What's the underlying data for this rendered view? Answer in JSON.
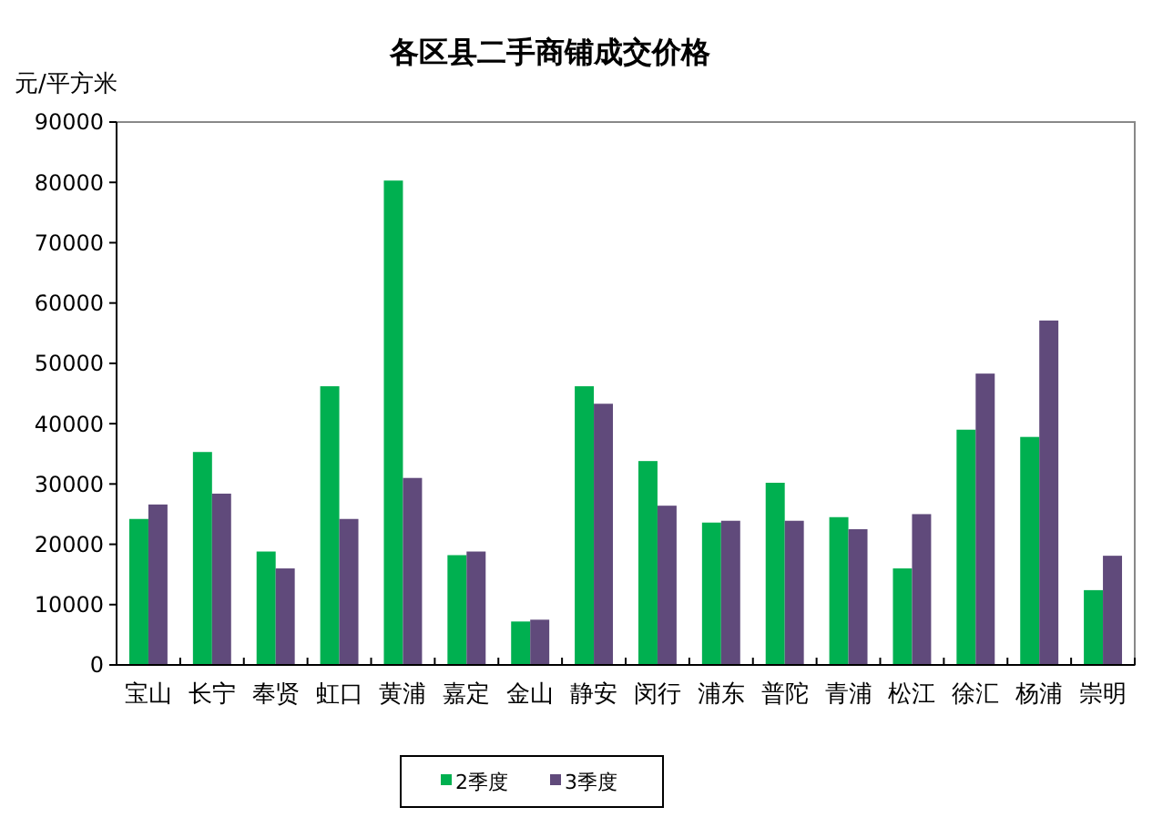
{
  "chart_data": {
    "type": "bar",
    "title": "各区县二手商铺成交价格",
    "ylabel": "元/平方米",
    "categories": [
      "宝山",
      "长宁",
      "奉贤",
      "虹口",
      "黄浦",
      "嘉定",
      "金山",
      "静安",
      "闵行",
      "浦东",
      "普陀",
      "青浦",
      "松江",
      "徐汇",
      "杨浦",
      "崇明"
    ],
    "series": [
      {
        "name": "2季度",
        "color": "#00b050",
        "values": [
          24200,
          35300,
          18800,
          46200,
          80300,
          18200,
          7200,
          46200,
          33800,
          23600,
          30200,
          24500,
          16000,
          39000,
          37800,
          12400
        ]
      },
      {
        "name": "3季度",
        "color": "#604a7b",
        "values": [
          26600,
          28400,
          16000,
          24200,
          31000,
          18800,
          7500,
          43300,
          26400,
          23900,
          23900,
          22500,
          25000,
          48300,
          57100,
          18100
        ]
      }
    ],
    "ylim": [
      0,
      90000
    ],
    "yticks": [
      0,
      10000,
      20000,
      30000,
      40000,
      50000,
      60000,
      70000,
      80000,
      90000
    ],
    "grid": false,
    "legend": "bottom"
  }
}
